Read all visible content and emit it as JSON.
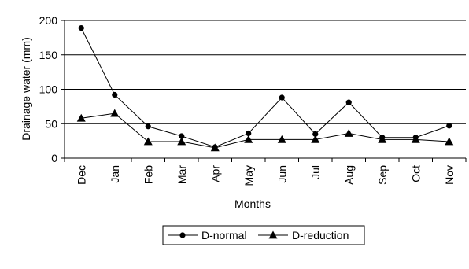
{
  "chart_data": {
    "type": "line",
    "xlabel": "Months",
    "ylabel": "Drainage water (mm)",
    "ylim": [
      0,
      200
    ],
    "yticks": [
      0,
      50,
      100,
      150,
      200
    ],
    "grid": "horizontal",
    "legend_position": "bottom",
    "categories": [
      "Dec",
      "Jan",
      "Feb",
      "Mar",
      "Apr",
      "May",
      "Jun",
      "Jul",
      "Aug",
      "Sep",
      "Oct",
      "Nov"
    ],
    "series": [
      {
        "name": "D-normal",
        "marker": "circle",
        "color": "#000000",
        "values": [
          189,
          92,
          46,
          32,
          16,
          36,
          88,
          35,
          81,
          30,
          30,
          47
        ]
      },
      {
        "name": "D-reduction",
        "marker": "triangle",
        "color": "#000000",
        "values": [
          58,
          65,
          24,
          24,
          15,
          27,
          27,
          27,
          36,
          27,
          27,
          24
        ]
      }
    ]
  }
}
